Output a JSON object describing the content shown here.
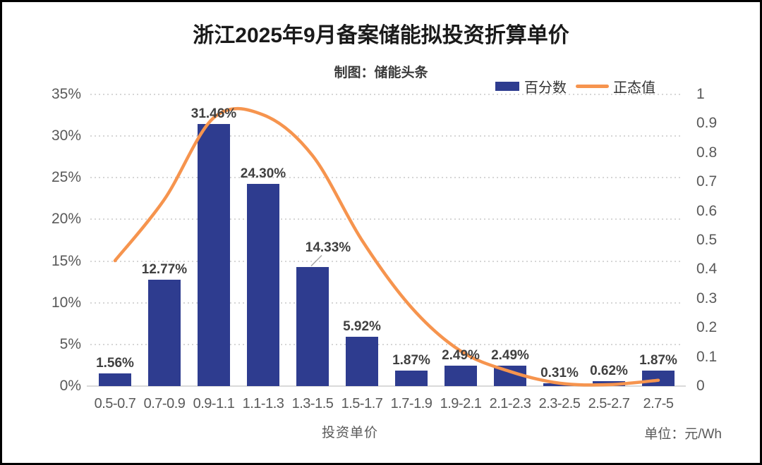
{
  "title": "浙江2025年9月备案储能拟投资折算单价",
  "subtitle": "制图：储能头条",
  "legend": {
    "items": [
      {
        "label": "百分数",
        "marker": "bar-swatch",
        "color": "#2E3C8F"
      },
      {
        "label": "正态值",
        "marker": "line-swatch",
        "color": "#F6944E"
      }
    ]
  },
  "axes": {
    "left": {
      "tick_labels": [
        "35%",
        "30%",
        "25%",
        "20%",
        "15%",
        "10%",
        "5%",
        "0%"
      ],
      "tick_values": [
        35,
        30,
        25,
        20,
        15,
        10,
        5,
        0
      ],
      "max_percent": 35
    },
    "right": {
      "tick_labels": [
        "1",
        "0.9",
        "0.8",
        "0.7",
        "0.6",
        "0.5",
        "0.4",
        "0.3",
        "0.2",
        "0.1",
        "0"
      ],
      "tick_values": [
        1,
        0.9,
        0.8,
        0.7,
        0.6,
        0.5,
        0.4,
        0.3,
        0.2,
        0.1,
        0
      ],
      "max": 1
    },
    "x": {
      "title": "投资单价",
      "unit": "单位：元/Wh"
    }
  },
  "chart_data": {
    "type": "bar+line combo",
    "categories": [
      "0.5-0.7",
      "0.7-0.9",
      "0.9-1.1",
      "1.1-1.3",
      "1.3-1.5",
      "1.5-1.7",
      "1.7-1.9",
      "1.9-2.1",
      "2.1-2.3",
      "2.3-2.5",
      "2.5-2.7",
      "2.7-5"
    ],
    "series": [
      {
        "name": "百分数",
        "type": "bar",
        "axis": "left",
        "values_percent": [
          1.56,
          12.77,
          31.46,
          24.3,
          14.33,
          5.92,
          1.87,
          2.49,
          2.49,
          0.31,
          0.62,
          1.87
        ],
        "data_labels": [
          "1.56%",
          "12.77%",
          "31.46%",
          "24.30%",
          "14.33%",
          "5.92%",
          "1.87%",
          "2.49%",
          "2.49%",
          "0.31%",
          "0.62%",
          "1.87%"
        ]
      },
      {
        "name": "正态值",
        "type": "line",
        "axis": "right",
        "values": [
          0.43,
          0.64,
          0.92,
          0.93,
          0.79,
          0.5,
          0.27,
          0.12,
          0.05,
          0.01,
          0.005,
          0.02
        ]
      }
    ],
    "callout": {
      "index": 4,
      "dx": 22,
      "raise": 13
    },
    "left_axis_range": [
      0,
      0.35
    ],
    "right_axis_range": [
      0,
      1
    ],
    "grid": "dotted horizontal",
    "legend_position": "top-right"
  },
  "colors": {
    "bar": "#2E3C8F",
    "line": "#F6944E",
    "grid": "#D6D6D6",
    "axis_line": "#D9D9D9",
    "axis_text": "#595959",
    "data_label": "#404040",
    "title_text": "#1A1A1A",
    "subtitle_text": "#3A3A3A",
    "legend_text": "#333333",
    "leader_line": "#A6A6A6"
  }
}
